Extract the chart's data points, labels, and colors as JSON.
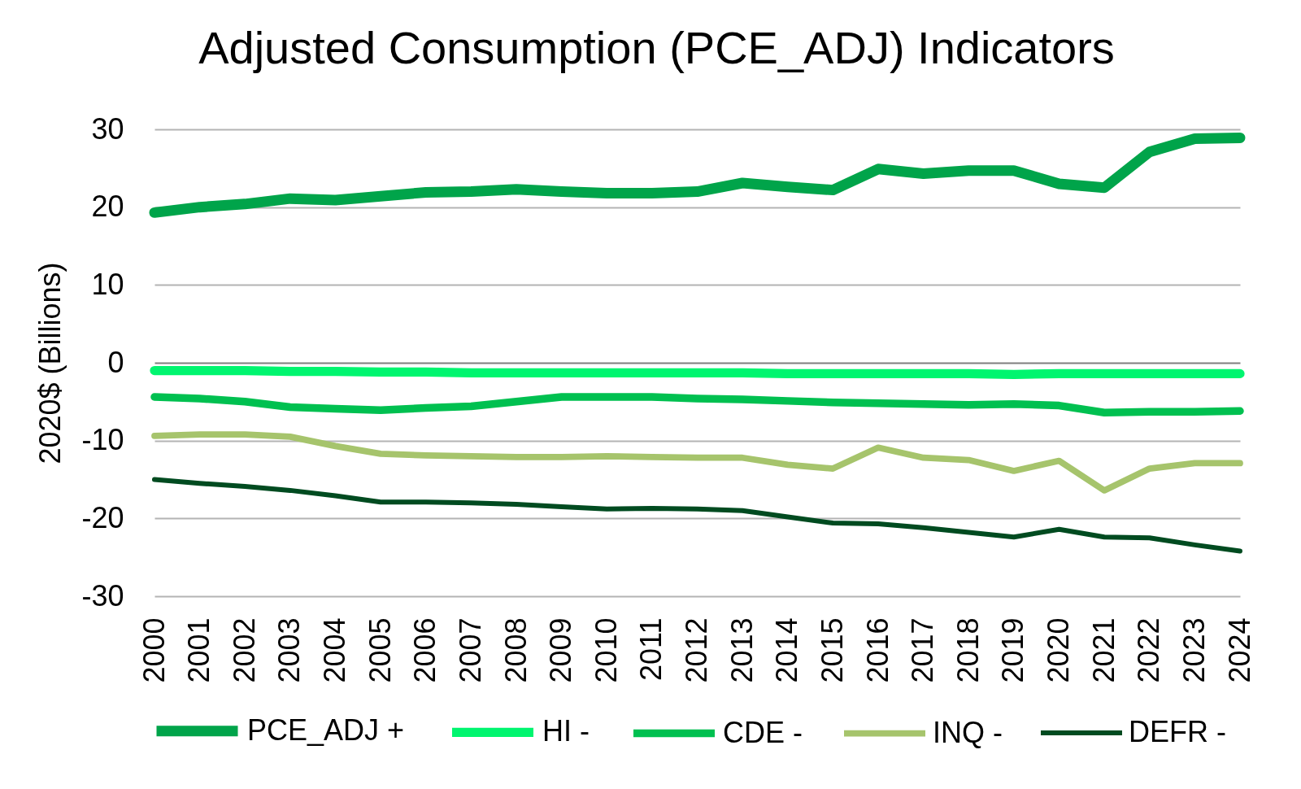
{
  "chart_data": {
    "type": "line",
    "title": "Adjusted Consumption (PCE_ADJ) Indicators",
    "ylabel": "2020$ (Billions)",
    "categories": [
      "2000",
      "2001",
      "2002",
      "2003",
      "2004",
      "2005",
      "2006",
      "2007",
      "2008",
      "2009",
      "2010",
      "2011",
      "2012",
      "2013",
      "2014",
      "2015",
      "2016",
      "2017",
      "2018",
      "2019",
      "2020",
      "2021",
      "2022",
      "2023",
      "2024"
    ],
    "ylim": [
      -30,
      30
    ],
    "yticks": [
      -30,
      -20,
      -10,
      0,
      10,
      20,
      30
    ],
    "grid": "y",
    "legend": "bottom",
    "line_style": "solid",
    "series": [
      {
        "name": "PCE_ADJ +",
        "color": "#00a44a",
        "values": [
          19.3,
          20.0,
          20.4,
          21.1,
          20.9,
          21.4,
          21.9,
          22.0,
          22.3,
          22.0,
          21.8,
          21.8,
          22.0,
          23.1,
          22.6,
          22.2,
          24.9,
          24.3,
          24.7,
          24.7,
          23.0,
          22.5,
          27.1,
          28.8,
          28.9
        ]
      },
      {
        "name": "HI -",
        "color": "#00f56f",
        "values": [
          -1.0,
          -1.0,
          -1.0,
          -1.1,
          -1.1,
          -1.2,
          -1.2,
          -1.3,
          -1.3,
          -1.3,
          -1.3,
          -1.3,
          -1.3,
          -1.3,
          -1.4,
          -1.4,
          -1.4,
          -1.4,
          -1.4,
          -1.5,
          -1.4,
          -1.4,
          -1.4,
          -1.4,
          -1.4
        ]
      },
      {
        "name": "CDE -",
        "color": "#00c050",
        "values": [
          -4.4,
          -4.6,
          -5.0,
          -5.7,
          -5.9,
          -6.1,
          -5.8,
          -5.6,
          -5.0,
          -4.4,
          -4.4,
          -4.4,
          -4.6,
          -4.7,
          -4.9,
          -5.1,
          -5.2,
          -5.3,
          -5.4,
          -5.3,
          -5.5,
          -6.4,
          -6.3,
          -6.3,
          -6.2
        ]
      },
      {
        "name": "INQ -",
        "color": "#a6c46c",
        "values": [
          -9.4,
          -9.2,
          -9.2,
          -9.5,
          -10.7,
          -11.7,
          -11.9,
          -12.0,
          -12.1,
          -12.1,
          -12.0,
          -12.1,
          -12.2,
          -12.2,
          -13.1,
          -13.6,
          -10.9,
          -12.2,
          -12.5,
          -13.9,
          -12.6,
          -16.4,
          -13.6,
          -12.9,
          -12.9
        ]
      },
      {
        "name": "DEFR -",
        "color": "#004b20",
        "values": [
          -15.0,
          -15.5,
          -15.9,
          -16.4,
          -17.1,
          -17.9,
          -17.9,
          -18.0,
          -18.2,
          -18.5,
          -18.8,
          -18.7,
          -18.8,
          -19.0,
          -19.8,
          -20.6,
          -20.7,
          -21.2,
          -21.8,
          -22.4,
          -21.4,
          -22.4,
          -22.5,
          -23.4,
          -24.2
        ]
      }
    ]
  }
}
